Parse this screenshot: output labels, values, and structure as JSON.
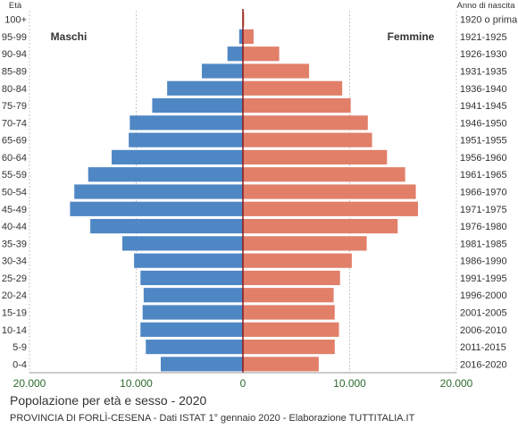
{
  "chart_data": {
    "type": "bar",
    "orientation": "horizontal-population-pyramid",
    "title": "Popolazione per età e sesso - 2020",
    "subtitle": "PROVINCIA DI FORLÌ-CESENA - Dati ISTAT 1° gennaio 2020 - Elaborazione TUTTITALIA.IT",
    "left_axis_header": "Età",
    "right_axis_header": "Anno di nascita",
    "age_groups": [
      "100+",
      "95-99",
      "90-94",
      "85-89",
      "80-84",
      "75-79",
      "70-74",
      "65-69",
      "60-64",
      "55-59",
      "50-54",
      "45-49",
      "40-44",
      "35-39",
      "30-34",
      "25-29",
      "20-24",
      "15-19",
      "10-14",
      "5-9",
      "0-4"
    ],
    "birth_years": [
      "1920 o prima",
      "1921-1925",
      "1926-1930",
      "1931-1935",
      "1936-1940",
      "1941-1945",
      "1946-1950",
      "1951-1955",
      "1956-1960",
      "1961-1965",
      "1966-1970",
      "1971-1975",
      "1976-1980",
      "1981-1985",
      "1986-1990",
      "1991-1995",
      "1996-2000",
      "2001-2005",
      "2006-2010",
      "2011-2015",
      "2016-2020"
    ],
    "series": [
      {
        "name": "Maschi",
        "color": "#4f87c5",
        "values": [
          30,
          350,
          1450,
          3850,
          7100,
          8500,
          10600,
          10700,
          12300,
          14500,
          15800,
          16200,
          14300,
          11300,
          10200,
          9600,
          9300,
          9400,
          9600,
          9100,
          7700
        ]
      },
      {
        "name": "Femmine",
        "color": "#e17f69",
        "values": [
          120,
          1000,
          3400,
          6200,
          9300,
          10100,
          11700,
          12100,
          13500,
          15200,
          16200,
          16400,
          14500,
          11600,
          10200,
          9100,
          8500,
          8600,
          9000,
          8600,
          7100
        ]
      }
    ],
    "xlim": [
      -20000,
      20000
    ],
    "x_ticks": [
      {
        "value": -20000,
        "label": "20.000"
      },
      {
        "value": -10000,
        "label": "10.000"
      },
      {
        "value": 0,
        "label": "0"
      },
      {
        "value": 10000,
        "label": "10.000"
      },
      {
        "value": 20000,
        "label": "20.000"
      }
    ],
    "grid": true,
    "legend": "inside-top (Maschi left, Femmine right)"
  }
}
